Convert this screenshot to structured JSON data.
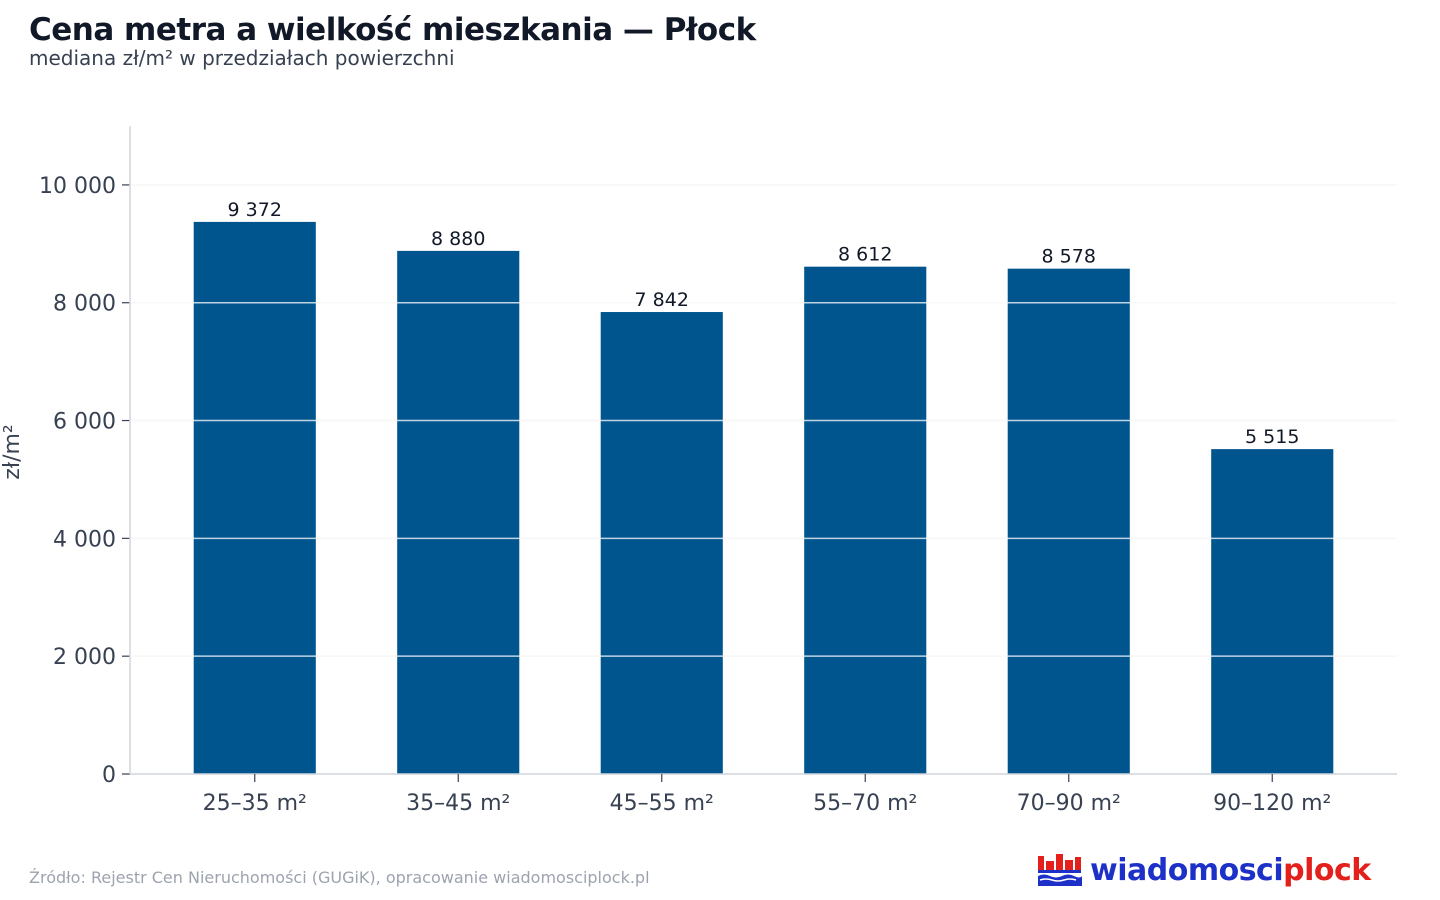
{
  "title": "Cena metra a wielkość mieszkania — Płock",
  "subtitle": "mediana zł/m² w przedziałach powierzchni",
  "source": "Źródło: Rejestr Cen Nieruchomości (GUGiK), opracowanie wiadomosciplock.pl",
  "logo": {
    "part1": "wiadomosci",
    "part2": "plock",
    "icon": "city-emblem-icon"
  },
  "colors": {
    "bar": "#00558e",
    "grid": "#e5e7eb",
    "axis": "#d1d5db",
    "text": "#374151",
    "logo_blue": "#1d31c8",
    "logo_red": "#e3201b"
  },
  "chart_data": {
    "type": "bar",
    "categories": [
      "25–35 m²",
      "35–45 m²",
      "45–55 m²",
      "55–70 m²",
      "70–90 m²",
      "90–120 m²"
    ],
    "values": [
      9372,
      8880,
      7842,
      8612,
      8578,
      5515
    ],
    "data_labels": [
      "9 372",
      "8 880",
      "7 842",
      "8 612",
      "8 578",
      "5 515"
    ],
    "ylabel": "zł/m²",
    "ylim": [
      0,
      11000
    ],
    "yticks": [
      0,
      2000,
      4000,
      6000,
      8000,
      10000
    ],
    "ytick_labels": [
      "0",
      "2 000",
      "4 000",
      "6 000",
      "8 000",
      "10 000"
    ],
    "grid": true
  }
}
